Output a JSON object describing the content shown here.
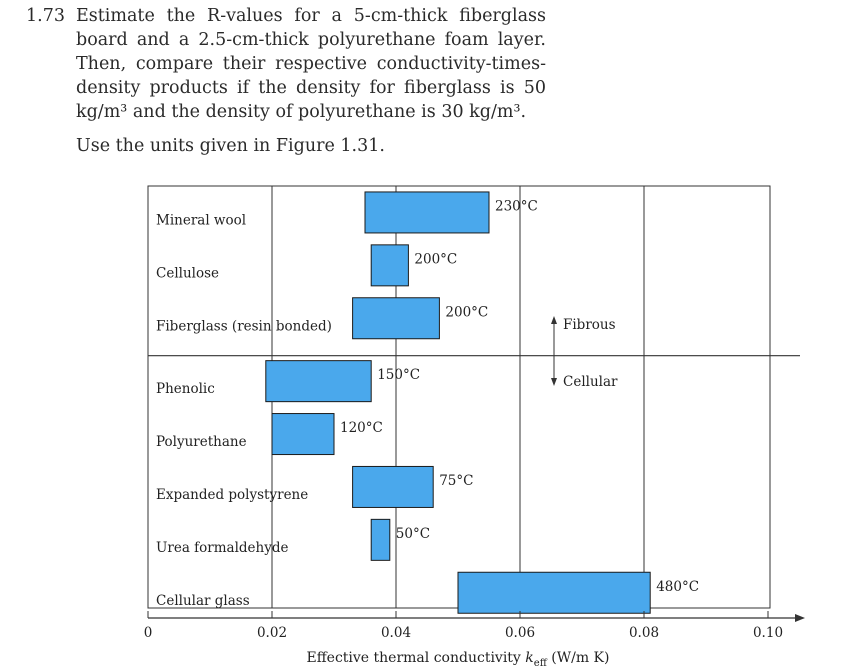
{
  "problem": {
    "number": "1.73",
    "text": "Estimate the R-values for a 5-cm-thick fiberglass board and a 2.5-cm-thick polyurethane foam layer. Then, compare their respective conductivity-times-density products if the density for fiberglass is 50 kg/m³ and the density of polyurethane is 30 kg/m³.",
    "units_note": "Use the units given in Figure 1.31."
  },
  "chart_data": {
    "type": "bar",
    "orientation": "horizontal-range",
    "categories": [
      "Mineral wool",
      "Cellulose",
      "Fiberglass (resin bonded)",
      "Phenolic",
      "Polyurethane",
      "Expanded polystyrene",
      "Urea formaldehyde",
      "Cellular glass"
    ],
    "ranges": [
      [
        0.035,
        0.055
      ],
      [
        0.036,
        0.042
      ],
      [
        0.033,
        0.047
      ],
      [
        0.019,
        0.036
      ],
      [
        0.02,
        0.03
      ],
      [
        0.033,
        0.046
      ],
      [
        0.036,
        0.039
      ],
      [
        0.05,
        0.081
      ]
    ],
    "temperature_labels": [
      "230°C",
      "200°C",
      "200°C",
      "150°C",
      "120°C",
      "75°C",
      "50°C",
      "480°C"
    ],
    "groups": [
      {
        "name": "Fibrous",
        "categories": [
          "Mineral wool",
          "Cellulose",
          "Fiberglass (resin bonded)"
        ]
      },
      {
        "name": "Cellular",
        "categories": [
          "Phenolic",
          "Polyurethane",
          "Expanded polystyrene",
          "Urea formaldehyde",
          "Cellular glass"
        ]
      }
    ],
    "xlabel": "Effective thermal conductivity k_eff (W/m K)",
    "xlabel_parts": {
      "main": "Effective thermal conductivity ",
      "symbol": "k",
      "subscript": "eff",
      "units": " (W/m K)"
    },
    "xticks": [
      0,
      0.02,
      0.04,
      0.06,
      0.08,
      0.1
    ],
    "xtick_labels": [
      "0",
      "0.02",
      "0.04",
      "0.06",
      "0.08",
      "0.10"
    ],
    "xlim": [
      0,
      0.1
    ],
    "grid": true,
    "bar_color": "#4aa8ec",
    "line_color": "#333333"
  }
}
